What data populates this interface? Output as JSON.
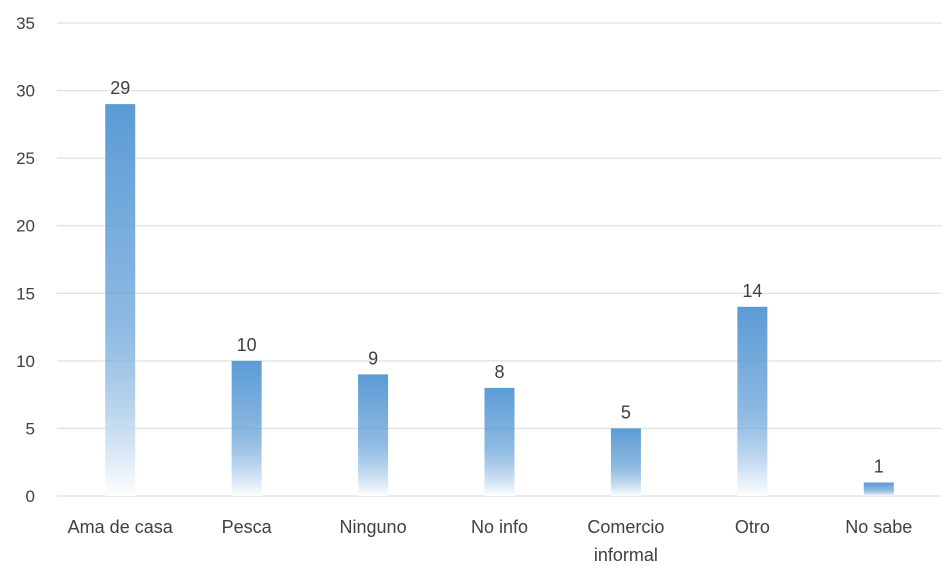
{
  "chart_data": {
    "type": "bar",
    "categories": [
      [
        "Ama de casa"
      ],
      [
        "Pesca"
      ],
      [
        "Ninguno"
      ],
      [
        "No info"
      ],
      [
        "Comercio",
        "informal"
      ],
      [
        "Otro"
      ],
      [
        "No sabe"
      ]
    ],
    "values": [
      29,
      10,
      9,
      8,
      5,
      14,
      1
    ],
    "data_labels": [
      "29",
      "10",
      "9",
      "8",
      "5",
      "14",
      "1"
    ],
    "ylim": [
      0,
      35
    ],
    "yticks": [
      "0",
      "5",
      "10",
      "15",
      "20",
      "25",
      "30",
      "35"
    ],
    "ytick_values": [
      0,
      5,
      10,
      15,
      20,
      25,
      30,
      35
    ],
    "grid": true,
    "title": "",
    "xlabel": "",
    "ylabel": "",
    "colors": {
      "bar_top": "#5b9bd5",
      "bar_bottom": "#ffffff",
      "grid": "#d9d9d9",
      "text": "#404040"
    }
  }
}
